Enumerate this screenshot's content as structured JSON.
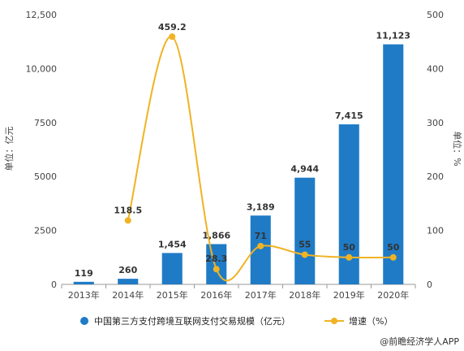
{
  "chart_data": {
    "type": "bar",
    "categories": [
      "2013年",
      "2014年",
      "2015年",
      "2016年",
      "2017年",
      "2018年",
      "2019年",
      "2020年"
    ],
    "series": [
      {
        "name": "中国第三方支付跨境互联网支付交易规模（亿元）",
        "type": "bar",
        "axis": "left",
        "values": [
          119,
          260,
          1454,
          1866,
          3189,
          4944,
          7415,
          11123
        ],
        "labels": [
          "119",
          "260",
          "1,454",
          "1,866",
          "3,189",
          "4,944",
          "7,415",
          "11,123"
        ],
        "color": "#1f7bc5"
      },
      {
        "name": "增速（%）",
        "type": "line",
        "axis": "right",
        "values": [
          null,
          118.5,
          459.2,
          28.3,
          71,
          55,
          50,
          50
        ],
        "labels": [
          "",
          "118.5",
          "459.2",
          "28.3",
          "71",
          "55",
          "50",
          "50"
        ],
        "color": "#f0b323"
      }
    ],
    "ylabel": "单位：亿元",
    "y2label": "单位：%",
    "ylim": [
      0,
      12500
    ],
    "y2lim": [
      0,
      500
    ],
    "yticks": [
      0,
      2500,
      5000,
      7500,
      10000,
      12500
    ],
    "ytick_labels": [
      "0",
      "2500",
      "5000",
      "7500",
      "10,000",
      "12,500"
    ],
    "y2ticks": [
      0,
      100,
      200,
      300,
      400,
      500
    ],
    "y2tick_labels": [
      "0",
      "100",
      "200",
      "300",
      "400",
      "500"
    ],
    "grid": false,
    "legend_position": "bottom"
  },
  "source": {
    "text": "@前瞻经济学人APP"
  }
}
